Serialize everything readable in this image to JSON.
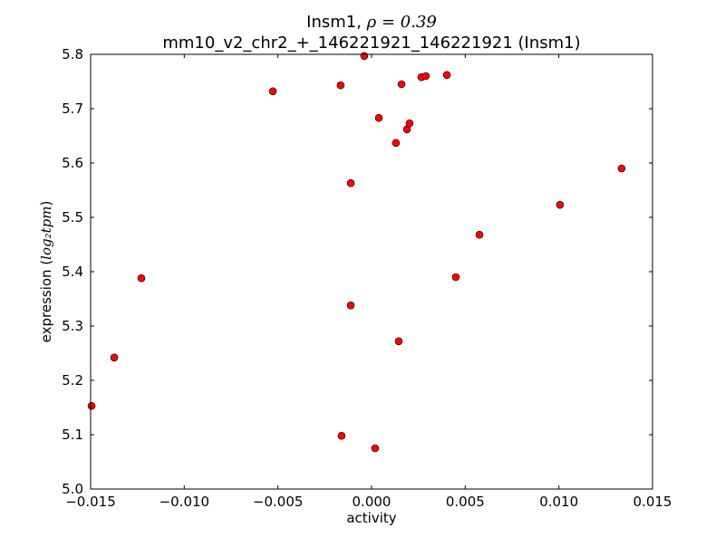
{
  "chart_data": {
    "type": "scatter",
    "title_line1_prefix": "Insm1, ",
    "title_line1_math": "ρ = 0.39",
    "title_line2": "mm10_v2_chr2_+_146221921_146221921 (Insm1)",
    "xlabel": "activity",
    "ylabel_prefix": "expression (",
    "ylabel_math": "log₂tpm",
    "ylabel_suffix": ")",
    "xlim": [
      -0.015,
      0.015
    ],
    "ylim": [
      5.0,
      5.8
    ],
    "xticks": [
      "−0.015",
      "−0.010",
      "−0.005",
      "0.000",
      "0.005",
      "0.010",
      "0.015"
    ],
    "xtick_values": [
      -0.015,
      -0.01,
      -0.005,
      0,
      0.005,
      0.01,
      0.015
    ],
    "yticks": [
      "5.0",
      "5.1",
      "5.2",
      "5.3",
      "5.4",
      "5.5",
      "5.6",
      "5.7",
      "5.8"
    ],
    "ytick_values": [
      5.0,
      5.1,
      5.2,
      5.3,
      5.4,
      5.5,
      5.6,
      5.7,
      5.8
    ],
    "marker_color": "#ff0000",
    "points": [
      [
        -0.01495,
        5.153
      ],
      [
        -0.01374,
        5.242
      ],
      [
        -0.01229,
        5.388
      ],
      [
        -0.00527,
        5.732
      ],
      [
        -0.00165,
        5.743
      ],
      [
        -0.00039,
        5.797
      ],
      [
        -0.00111,
        5.563
      ],
      [
        -0.00111,
        5.338
      ],
      [
        -0.0016,
        5.098
      ],
      [
        0.00019,
        5.075
      ],
      [
        0.00039,
        5.683
      ],
      [
        0.0016,
        5.745
      ],
      [
        0.0013,
        5.637
      ],
      [
        0.00189,
        5.662
      ],
      [
        0.00203,
        5.673
      ],
      [
        0.00145,
        5.272
      ],
      [
        0.00266,
        5.758
      ],
      [
        0.0029,
        5.76
      ],
      [
        0.00402,
        5.762
      ],
      [
        0.0045,
        5.39
      ],
      [
        0.00576,
        5.468
      ],
      [
        0.01006,
        5.523
      ],
      [
        0.01335,
        5.59
      ]
    ]
  }
}
